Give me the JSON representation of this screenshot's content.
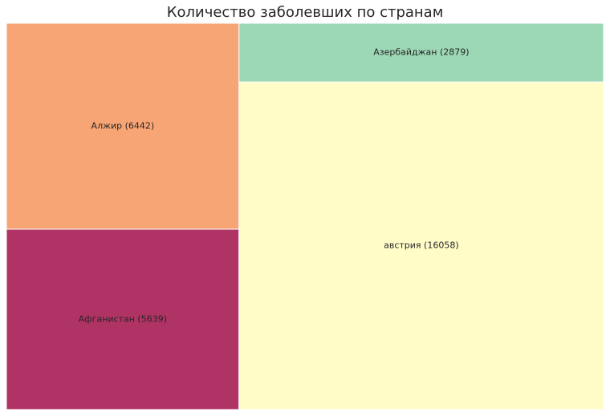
{
  "chart_data": {
    "type": "treemap",
    "title": "Количество заболевших по странам",
    "items": [
      {
        "label": "Алжир (6442)",
        "country": "Алжир",
        "value": 6442,
        "color": "#f8a575"
      },
      {
        "label": "Афганистан (5639)",
        "country": "Афганистан",
        "value": 5639,
        "color": "#b03366"
      },
      {
        "label": "Азербайджан (2879)",
        "country": "Азербайджан",
        "value": 2879,
        "color": "#9dd8b6"
      },
      {
        "label": "австрия (16058)",
        "country": "австрия",
        "value": 16058,
        "color": "#fffcc8"
      }
    ]
  }
}
